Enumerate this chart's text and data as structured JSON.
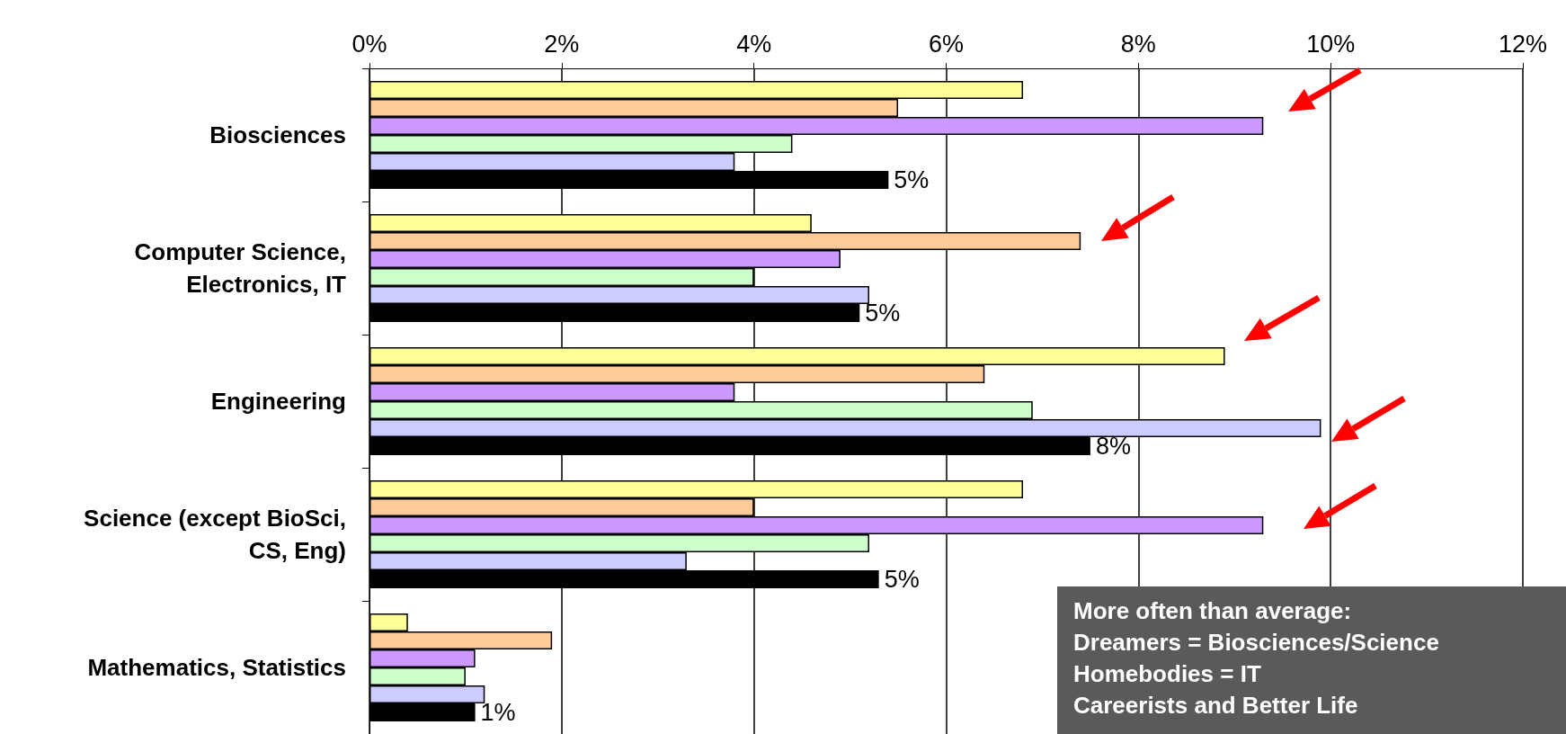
{
  "chart_data": {
    "type": "bar",
    "orientation": "horizontal",
    "categories": [
      "Biosciences",
      "Computer Science,\nElectronics, IT",
      "Engineering",
      "Science (except BioSci,\nCS, Eng)",
      "Mathematics, Statistics"
    ],
    "series": [
      {
        "color": "#ffff99",
        "values": [
          6.8,
          4.6,
          8.9,
          6.8,
          0.4
        ]
      },
      {
        "color": "#ffcc99",
        "values": [
          5.5,
          7.4,
          6.4,
          4.0,
          1.9
        ]
      },
      {
        "color": "#cc99ff",
        "values": [
          9.3,
          4.9,
          3.8,
          9.3,
          1.1
        ]
      },
      {
        "color": "#ccffcc",
        "values": [
          4.4,
          4.0,
          6.9,
          5.2,
          1.0
        ]
      },
      {
        "color": "#ccccff",
        "values": [
          3.8,
          5.2,
          9.9,
          3.3,
          1.2
        ]
      },
      {
        "color": "#000000",
        "values": [
          5.4,
          5.1,
          7.5,
          5.3,
          1.1
        ],
        "value_labels": [
          "5%",
          "5%",
          "8%",
          "5%",
          "1%"
        ]
      }
    ],
    "xlim": [
      0,
      12
    ],
    "xticks": [
      {
        "value": 0,
        "label": "0%"
      },
      {
        "value": 2,
        "label": "2%"
      },
      {
        "value": 4,
        "label": "4%"
      },
      {
        "value": 6,
        "label": "6%"
      },
      {
        "value": 8,
        "label": "8%"
      },
      {
        "value": 10,
        "label": "10%"
      },
      {
        "value": 12,
        "label": "12%"
      }
    ],
    "grid": "x",
    "annotations": [
      "More often than average:\nDreamers = Biosciences/Science\nHomebodies = IT\nCareerists and Better Life"
    ]
  }
}
